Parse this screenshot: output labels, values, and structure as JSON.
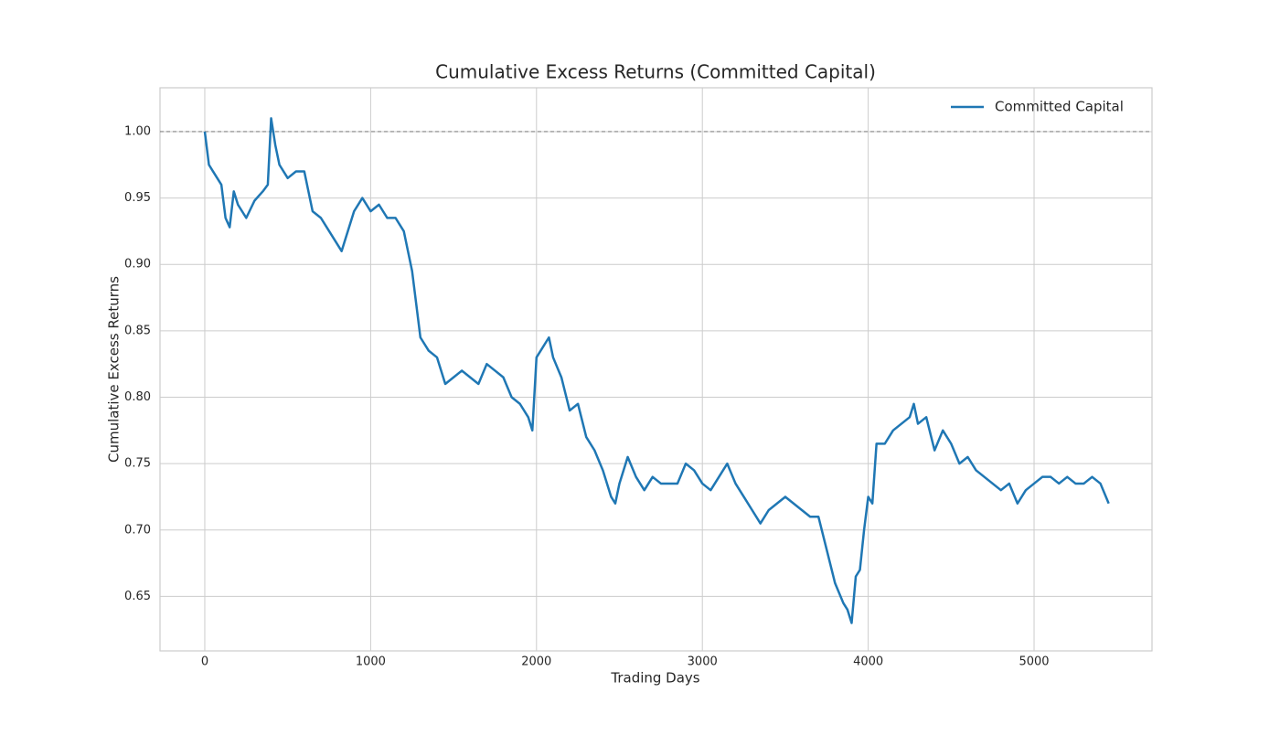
{
  "chart_data": {
    "type": "line",
    "title": "Cumulative Excess Returns (Committed Capital)",
    "xlabel": "Trading Days",
    "ylabel": "Cumulative Excess Returns",
    "x": [
      0,
      25,
      50,
      100,
      125,
      150,
      175,
      200,
      250,
      300,
      350,
      380,
      400,
      425,
      450,
      500,
      550,
      600,
      625,
      650,
      700,
      750,
      800,
      825,
      850,
      900,
      950,
      1000,
      1050,
      1100,
      1150,
      1200,
      1250,
      1275,
      1300,
      1350,
      1400,
      1450,
      1500,
      1550,
      1600,
      1650,
      1700,
      1750,
      1800,
      1850,
      1900,
      1950,
      1975,
      2000,
      2050,
      2075,
      2100,
      2150,
      2200,
      2250,
      2300,
      2350,
      2400,
      2450,
      2475,
      2500,
      2550,
      2600,
      2650,
      2700,
      2750,
      2800,
      2850,
      2900,
      2950,
      3000,
      3050,
      3100,
      3150,
      3200,
      3250,
      3300,
      3350,
      3400,
      3450,
      3500,
      3550,
      3600,
      3650,
      3700,
      3750,
      3800,
      3850,
      3875,
      3900,
      3925,
      3950,
      3975,
      4000,
      4025,
      4050,
      4100,
      4150,
      4200,
      4250,
      4275,
      4300,
      4350,
      4400,
      4450,
      4500,
      4550,
      4600,
      4650,
      4700,
      4750,
      4800,
      4850,
      4900,
      4950,
      5000,
      5050,
      5100,
      5150,
      5200,
      5250,
      5300,
      5350,
      5400,
      5450
    ],
    "series": [
      {
        "name": "Committed Capital",
        "color": "#1f77b4",
        "values": [
          1.0,
          0.975,
          0.97,
          0.96,
          0.935,
          0.928,
          0.955,
          0.945,
          0.935,
          0.948,
          0.955,
          0.96,
          1.01,
          0.99,
          0.975,
          0.965,
          0.97,
          0.97,
          0.955,
          0.94,
          0.935,
          0.925,
          0.915,
          0.91,
          0.92,
          0.94,
          0.95,
          0.94,
          0.945,
          0.935,
          0.935,
          0.925,
          0.895,
          0.87,
          0.845,
          0.835,
          0.83,
          0.81,
          0.815,
          0.82,
          0.815,
          0.81,
          0.825,
          0.82,
          0.815,
          0.8,
          0.795,
          0.785,
          0.775,
          0.83,
          0.84,
          0.845,
          0.83,
          0.815,
          0.79,
          0.795,
          0.77,
          0.76,
          0.745,
          0.725,
          0.72,
          0.735,
          0.755,
          0.74,
          0.73,
          0.74,
          0.735,
          0.735,
          0.735,
          0.75,
          0.745,
          0.735,
          0.73,
          0.74,
          0.75,
          0.735,
          0.725,
          0.715,
          0.705,
          0.715,
          0.72,
          0.725,
          0.72,
          0.715,
          0.71,
          0.71,
          0.685,
          0.66,
          0.645,
          0.64,
          0.63,
          0.665,
          0.67,
          0.7,
          0.725,
          0.72,
          0.765,
          0.765,
          0.775,
          0.78,
          0.785,
          0.795,
          0.78,
          0.785,
          0.76,
          0.775,
          0.765,
          0.75,
          0.755,
          0.745,
          0.74,
          0.735,
          0.73,
          0.735,
          0.72,
          0.73,
          0.735,
          0.74,
          0.74,
          0.735,
          0.74,
          0.735,
          0.735,
          0.74,
          0.735,
          0.72
        ]
      }
    ],
    "hline": 1.0,
    "xlim": [
      -270,
      5711
    ],
    "ylim": [
      0.609,
      1.033
    ],
    "xticks": [
      0,
      1000,
      2000,
      3000,
      4000,
      5000
    ],
    "yticks": [
      0.65,
      {
        "value": 0.7,
        "label": "0.70"
      },
      0.75,
      {
        "value": 0.8,
        "label": "0.80"
      },
      0.85,
      {
        "value": 0.9,
        "label": "0.90"
      },
      0.95,
      {
        "value": 1.0,
        "label": "1.00"
      }
    ],
    "grid": true,
    "legend": "upper right"
  }
}
